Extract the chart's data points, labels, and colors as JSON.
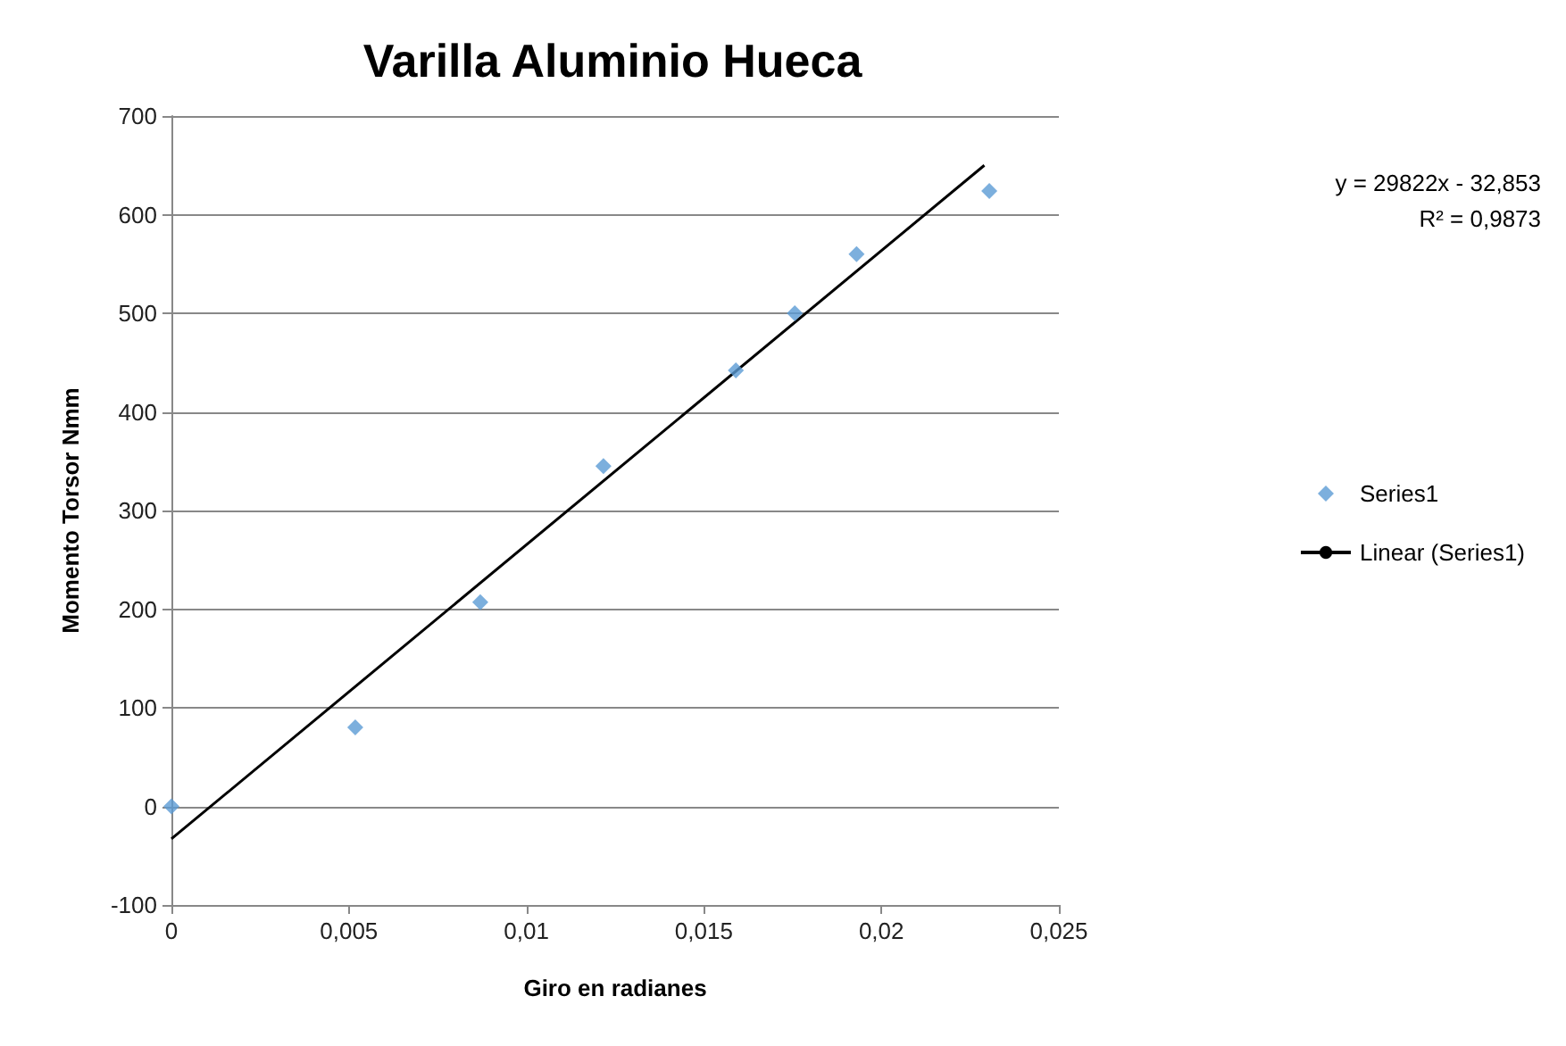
{
  "chart_data": {
    "type": "scatter",
    "title": "Varilla Aluminio Hueca",
    "xlabel": "Giro en radianes",
    "ylabel": "Momento Torsor Nmm",
    "annotations": [
      "y = 29822x - 32,853",
      "R² = 0,9873"
    ],
    "xlim": [
      0,
      0.025
    ],
    "xticks": [
      0,
      {
        "value": 0.005,
        "label": "0,005"
      },
      {
        "value": 0.01,
        "label": "0,01"
      },
      {
        "value": 0.015,
        "label": "0,015"
      },
      {
        "value": 0.02,
        "label": "0,02"
      },
      {
        "value": 0.025,
        "label": "0,025"
      }
    ],
    "ylim": [
      -100,
      700
    ],
    "yticks": [
      -100,
      0,
      100,
      200,
      300,
      400,
      500,
      600,
      700
    ],
    "grid": "y",
    "legend": "right",
    "series": [
      {
        "name": "Series1",
        "marker": "diamond",
        "color": "#5b9bd5",
        "x": [
          0,
          0.00518,
          0.0087,
          0.01217,
          0.0159,
          0.01756,
          0.0193,
          0.02304
        ],
        "values": [
          0,
          80,
          207,
          345,
          442,
          500,
          560,
          624
        ]
      },
      {
        "name": "Linear (Series1)",
        "type": "line",
        "marker": "none",
        "line_style": "solid",
        "color": "#000000",
        "x": [
          0,
          0.0229
        ],
        "values": [
          -33,
          650
        ]
      }
    ]
  }
}
